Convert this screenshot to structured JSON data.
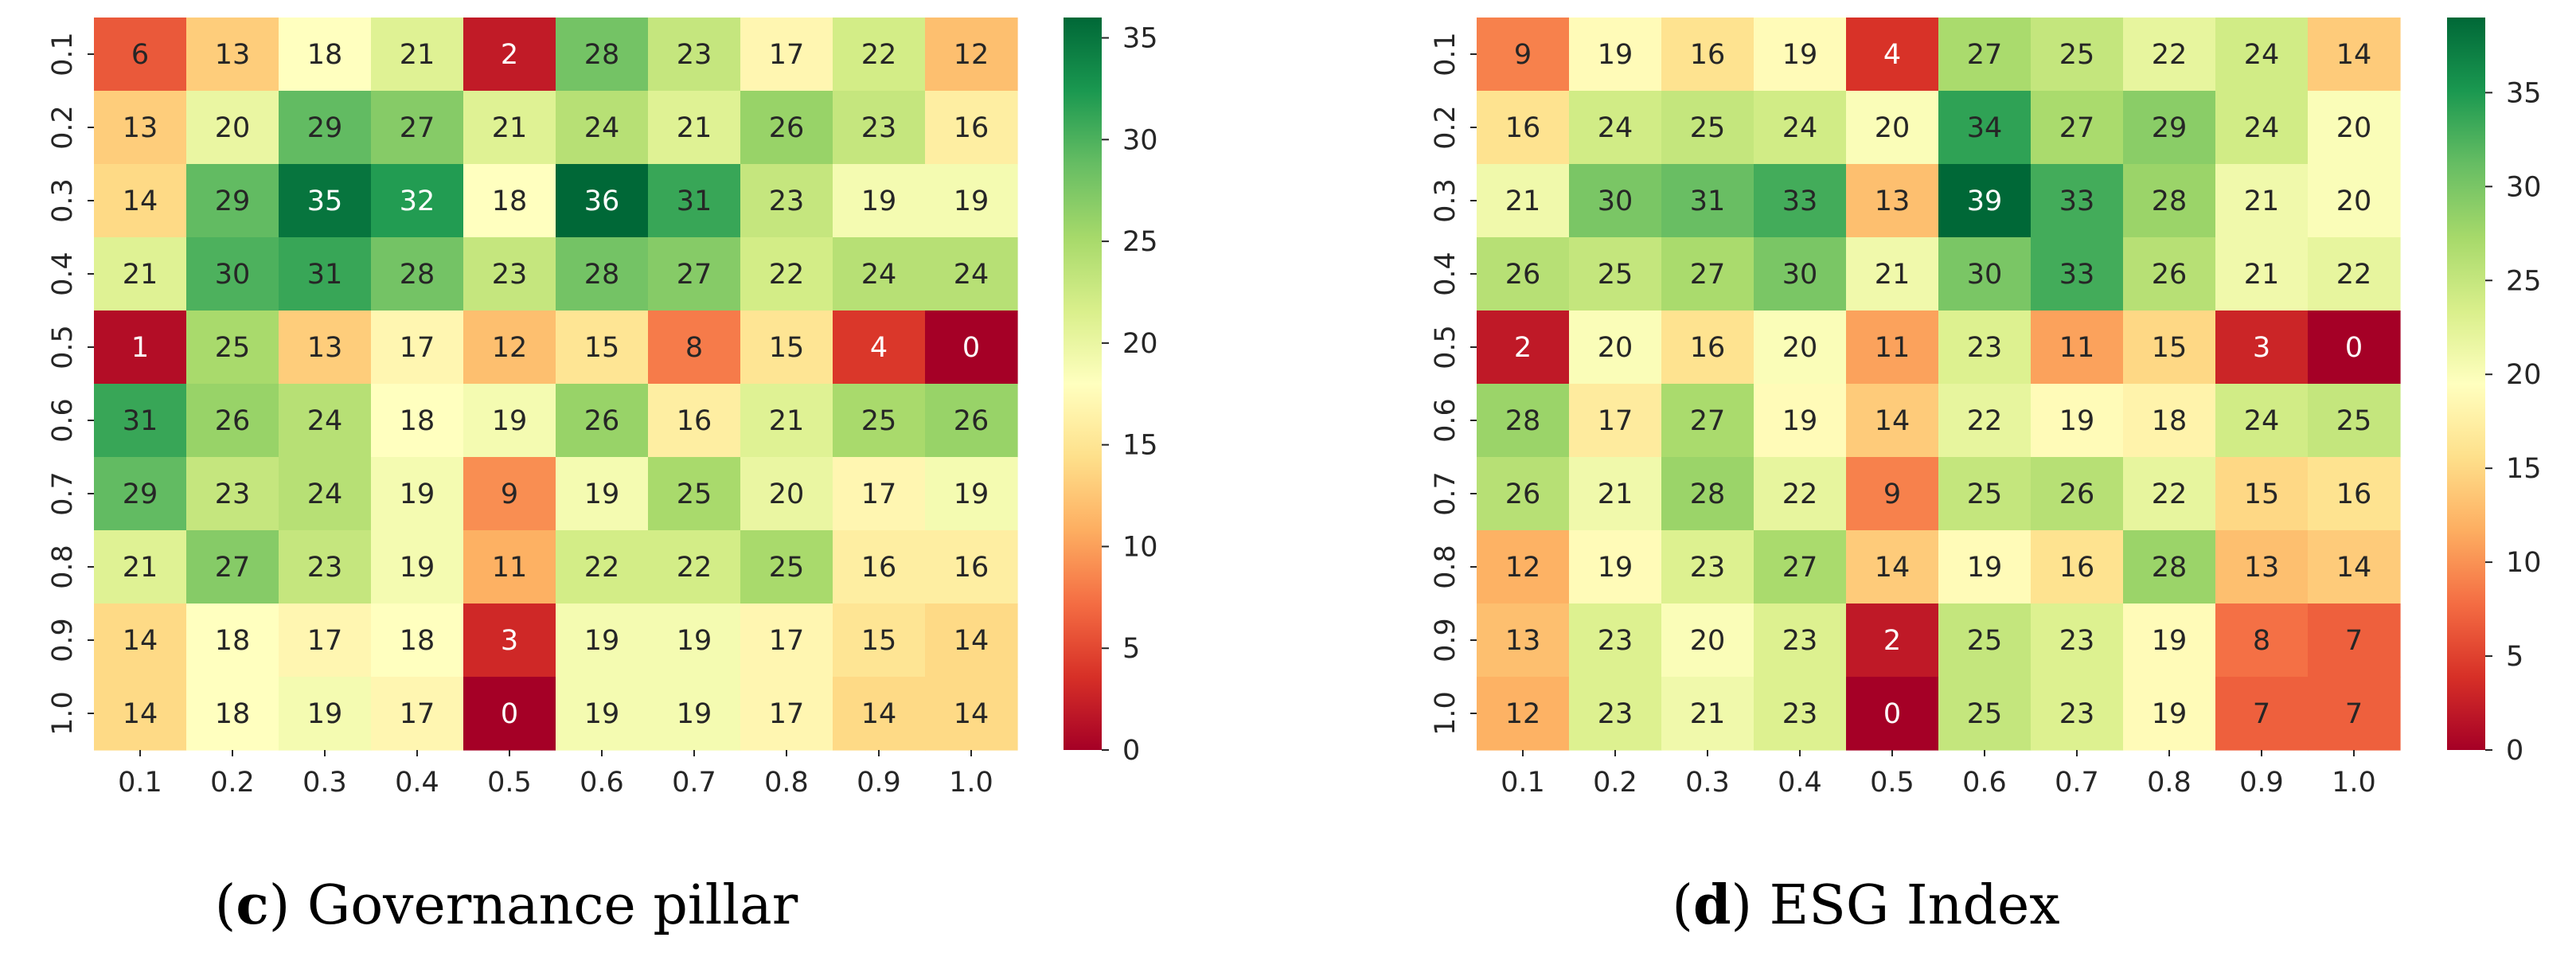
{
  "chart_data": [
    {
      "type": "heatmap",
      "caption_letter": "c",
      "caption_text": "Governance pillar",
      "x_categories": [
        "0.1",
        "0.2",
        "0.3",
        "0.4",
        "0.5",
        "0.6",
        "0.7",
        "0.8",
        "0.9",
        "1.0"
      ],
      "y_categories": [
        "0.1",
        "0.2",
        "0.3",
        "0.4",
        "0.5",
        "0.6",
        "0.7",
        "0.8",
        "0.9",
        "1.0"
      ],
      "values": [
        [
          6,
          13,
          18,
          21,
          2,
          28,
          23,
          17,
          22,
          12
        ],
        [
          13,
          20,
          29,
          27,
          21,
          24,
          21,
          26,
          23,
          16
        ],
        [
          14,
          29,
          35,
          32,
          18,
          36,
          31,
          23,
          19,
          19
        ],
        [
          21,
          30,
          31,
          28,
          23,
          28,
          27,
          22,
          24,
          24
        ],
        [
          1,
          25,
          13,
          17,
          12,
          15,
          8,
          15,
          4,
          0
        ],
        [
          31,
          26,
          24,
          18,
          19,
          26,
          16,
          21,
          25,
          26
        ],
        [
          29,
          23,
          24,
          19,
          9,
          19,
          25,
          20,
          17,
          19
        ],
        [
          21,
          27,
          23,
          19,
          11,
          22,
          22,
          25,
          16,
          16
        ],
        [
          14,
          18,
          17,
          18,
          3,
          19,
          19,
          17,
          15,
          14
        ],
        [
          14,
          18,
          19,
          17,
          0,
          19,
          19,
          17,
          14,
          14
        ]
      ],
      "colorbar": {
        "min": 0,
        "max": 36,
        "ticks": [
          0,
          5,
          10,
          15,
          20,
          25,
          30,
          35
        ]
      },
      "colormap": "RdYlGn"
    },
    {
      "type": "heatmap",
      "caption_letter": "d",
      "caption_text": "ESG Index",
      "x_categories": [
        "0.1",
        "0.2",
        "0.3",
        "0.4",
        "0.5",
        "0.6",
        "0.7",
        "0.8",
        "0.9",
        "1.0"
      ],
      "y_categories": [
        "0.1",
        "0.2",
        "0.3",
        "0.4",
        "0.5",
        "0.6",
        "0.7",
        "0.8",
        "0.9",
        "1.0"
      ],
      "values": [
        [
          9,
          19,
          16,
          19,
          4,
          27,
          25,
          22,
          24,
          14
        ],
        [
          16,
          24,
          25,
          24,
          20,
          34,
          27,
          29,
          24,
          20
        ],
        [
          21,
          30,
          31,
          33,
          13,
          39,
          33,
          28,
          21,
          20
        ],
        [
          26,
          25,
          27,
          30,
          21,
          30,
          33,
          26,
          21,
          22
        ],
        [
          2,
          20,
          16,
          20,
          11,
          23,
          11,
          15,
          3,
          0
        ],
        [
          28,
          17,
          27,
          19,
          14,
          22,
          19,
          18,
          24,
          25
        ],
        [
          26,
          21,
          28,
          22,
          9,
          25,
          26,
          22,
          15,
          16
        ],
        [
          12,
          19,
          23,
          27,
          14,
          19,
          16,
          28,
          13,
          14
        ],
        [
          13,
          23,
          20,
          23,
          2,
          25,
          23,
          19,
          8,
          7
        ],
        [
          12,
          23,
          21,
          23,
          0,
          25,
          23,
          19,
          7,
          7
        ]
      ],
      "colorbar": {
        "min": 0,
        "max": 39,
        "ticks": [
          0,
          5,
          10,
          15,
          20,
          25,
          30,
          35
        ]
      },
      "colormap": "RdYlGn"
    }
  ]
}
